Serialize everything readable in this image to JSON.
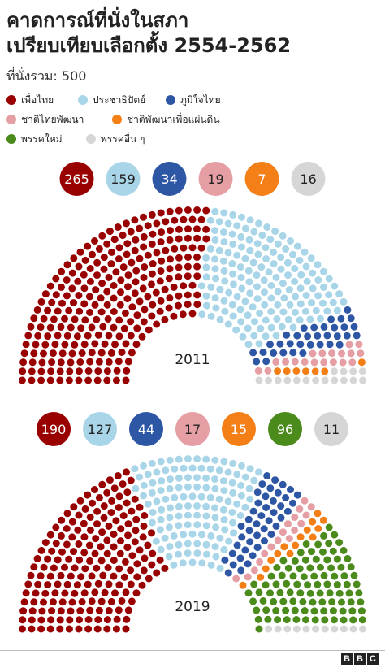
{
  "title_line1": "คาดการณ์ที่นั่งในสภา",
  "title_line2": "เปรียบเทียบเลือกตั้ง 2554-2562",
  "subtitle": "ที่นั่งรวม: 500",
  "brand_letters": [
    "B",
    "B",
    "C"
  ],
  "legend": [
    {
      "label": "เพื่อไทย",
      "color": "#990000"
    },
    {
      "label": "ประชาธิปัตย์",
      "color": "#a8d5e8"
    },
    {
      "label": "ภูมิใจไทย",
      "color": "#2d56a5"
    },
    {
      "label": "ชาติไทยพัฒนา",
      "color": "#e59ea3"
    },
    {
      "label": "ชาติพัฒนาเพื่อแผ่นดิน",
      "color": "#f57f17"
    },
    {
      "label": "พรรคใหม่",
      "color": "#4b8b1c"
    },
    {
      "label": "พรรคอื่น ๆ",
      "color": "#d6d6d6"
    }
  ],
  "chart_data": [
    {
      "type": "parliament",
      "year_label": "2011",
      "total_seats": 500,
      "series": [
        {
          "name": "เพื่อไทย",
          "value": 265,
          "color": "#990000"
        },
        {
          "name": "ประชาธิปัตย์",
          "value": 159,
          "color": "#a8d5e8"
        },
        {
          "name": "ภูมิใจไทย",
          "value": 34,
          "color": "#2d56a5"
        },
        {
          "name": "ชาติไทยพัฒนา",
          "value": 19,
          "color": "#e59ea3"
        },
        {
          "name": "ชาติพัฒนาเพื่อแผ่นดิน",
          "value": 7,
          "color": "#f57f17"
        },
        {
          "name": "พรรคอื่น ๆ",
          "value": 16,
          "color": "#d6d6d6"
        }
      ]
    },
    {
      "type": "parliament",
      "year_label": "2019",
      "total_seats": 500,
      "series": [
        {
          "name": "เพื่อไทย",
          "value": 190,
          "color": "#990000"
        },
        {
          "name": "ประชาธิปัตย์",
          "value": 127,
          "color": "#a8d5e8"
        },
        {
          "name": "ภูมิใจไทย",
          "value": 44,
          "color": "#2d56a5"
        },
        {
          "name": "ชาติไทยพัฒนา",
          "value": 17,
          "color": "#e59ea3"
        },
        {
          "name": "ชาติพัฒนาเพื่อแผ่นดิน",
          "value": 15,
          "color": "#f57f17"
        },
        {
          "name": "พรรคใหม่",
          "value": 96,
          "color": "#4b8b1c"
        },
        {
          "name": "พรรคอื่น ๆ",
          "value": 11,
          "color": "#d6d6d6"
        }
      ]
    }
  ]
}
